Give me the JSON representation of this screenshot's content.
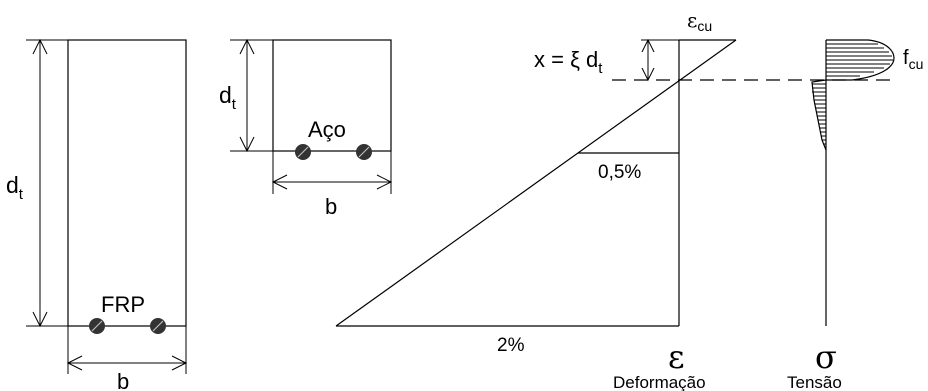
{
  "beam_frp": {
    "height_label": "d",
    "height_sub": "t",
    "width_label": "b",
    "bar_label": "FRP"
  },
  "beam_steel": {
    "height_label": "d",
    "height_sub": "t",
    "width_label": "b",
    "bar_label": "Aço"
  },
  "strain_diagram": {
    "top_strain_symbol": "ε",
    "top_strain_sub": "cu",
    "neutral_axis_eq": "x = ξ d",
    "neutral_axis_sub": "t",
    "mid_strain_label": "0,5%",
    "bottom_strain_label": "2%",
    "axis_symbol": "ε",
    "axis_caption": "Deformação"
  },
  "stress_diagram": {
    "peak_symbol": "f",
    "peak_sub": "cu",
    "axis_symbol": "σ",
    "axis_caption": "Tensão"
  }
}
